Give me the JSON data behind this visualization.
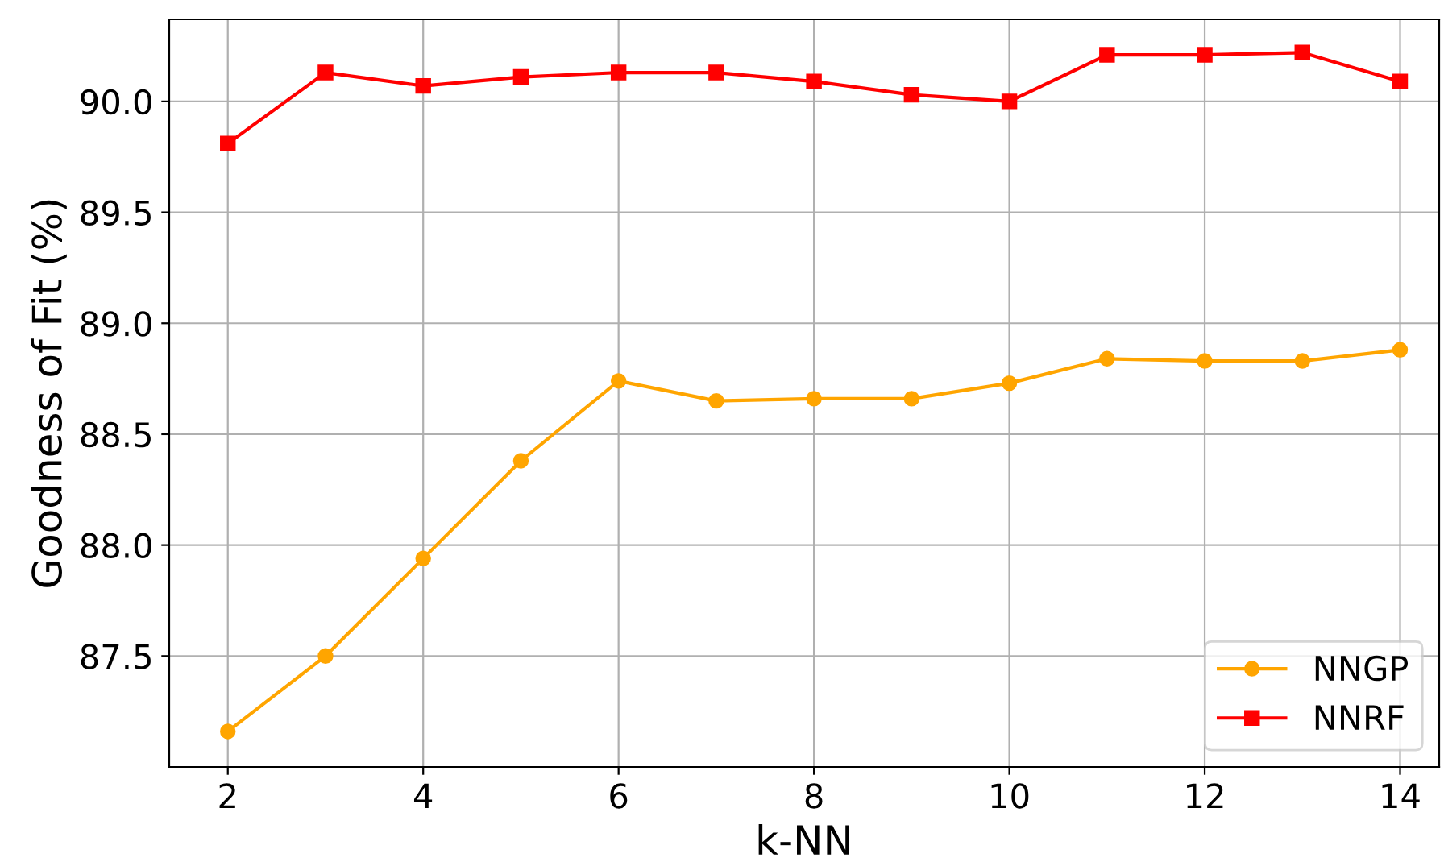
{
  "chart_data": {
    "type": "line",
    "xlabel": "k-NN",
    "ylabel": "Goodness of Fit (%)",
    "x": [
      2,
      3,
      4,
      5,
      6,
      7,
      8,
      9,
      10,
      11,
      12,
      13,
      14
    ],
    "series": [
      {
        "name": "NNGP",
        "color": "#ffa500",
        "marker": "circle",
        "values": [
          87.16,
          87.5,
          87.94,
          88.38,
          88.74,
          88.65,
          88.66,
          88.66,
          88.73,
          88.84,
          88.83,
          88.83,
          88.88
        ]
      },
      {
        "name": "NNRF",
        "color": "#ff0000",
        "marker": "square",
        "values": [
          89.81,
          90.13,
          90.07,
          90.11,
          90.13,
          90.13,
          90.09,
          90.03,
          90.0,
          90.21,
          90.21,
          90.22,
          90.09
        ]
      }
    ],
    "xlim": [
      1.4,
      14.4
    ],
    "ylim": [
      87.0,
      90.37
    ],
    "xticks": [
      2,
      4,
      6,
      8,
      10,
      12,
      14
    ],
    "yticks": [
      {
        "value": 87.5,
        "label": "87.5"
      },
      {
        "value": 88.0,
        "label": "88.0"
      },
      {
        "value": 88.5,
        "label": "88.5"
      },
      {
        "value": 89.0,
        "label": "89.0"
      },
      {
        "value": 89.5,
        "label": "89.5"
      },
      {
        "value": 90.0,
        "label": "90.0"
      }
    ],
    "grid": true,
    "legend": "bottom right",
    "line_style": "solid"
  }
}
